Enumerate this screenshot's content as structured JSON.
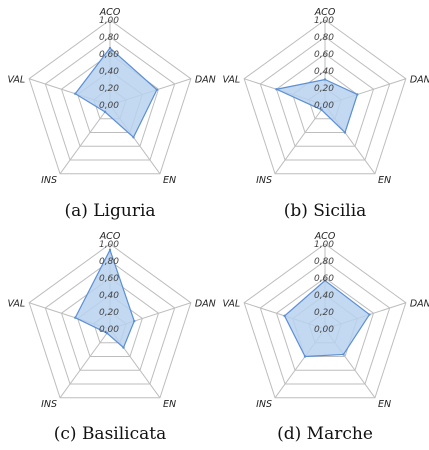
{
  "chart_data": [
    {
      "type": "radar",
      "caption": "(a) Liguria",
      "axes": [
        "ACO",
        "DAN",
        "EN",
        "INS",
        "VAL"
      ],
      "rlim": [
        0,
        1
      ],
      "ticks": [
        "0,00",
        "0,20",
        "0,40",
        "0,60",
        "0,80",
        "1,00"
      ],
      "values": [
        0.67,
        0.58,
        0.47,
        0.1,
        0.43
      ],
      "fill_color": "#b8d1ef",
      "line_color": "#5b8fd6"
    },
    {
      "type": "radar",
      "caption": "(b) Sicilia",
      "axes": [
        "ACO",
        "DAN",
        "EN",
        "INS",
        "VAL"
      ],
      "rlim": [
        0,
        1
      ],
      "ticks": [
        "0,00",
        "0,20",
        "0,40",
        "0,60",
        "0,80",
        "1,00"
      ],
      "values": [
        0.3,
        0.4,
        0.4,
        0.07,
        0.6
      ],
      "fill_color": "#b8d1ef",
      "line_color": "#5b8fd6"
    },
    {
      "type": "radar",
      "caption": "(c) Basilicata",
      "axes": [
        "ACO",
        "DAN",
        "EN",
        "INS",
        "VAL"
      ],
      "rlim": [
        0,
        1
      ],
      "ticks": [
        "0,00",
        "0,20",
        "0,40",
        "0,60",
        "0,80",
        "1,00"
      ],
      "values": [
        0.93,
        0.3,
        0.27,
        0.06,
        0.43
      ],
      "fill_color": "#b8d1ef",
      "line_color": "#5b8fd6"
    },
    {
      "type": "radar",
      "caption": "(d) Marche",
      "axes": [
        "ACO",
        "DAN",
        "EN",
        "INS",
        "VAL"
      ],
      "rlim": [
        0,
        1
      ],
      "ticks": [
        "0,00",
        "0,20",
        "0,40",
        "0,60",
        "0,80",
        "1,00"
      ],
      "values": [
        0.57,
        0.55,
        0.37,
        0.4,
        0.5
      ],
      "fill_color": "#b8d1ef",
      "line_color": "#5b8fd6"
    }
  ]
}
